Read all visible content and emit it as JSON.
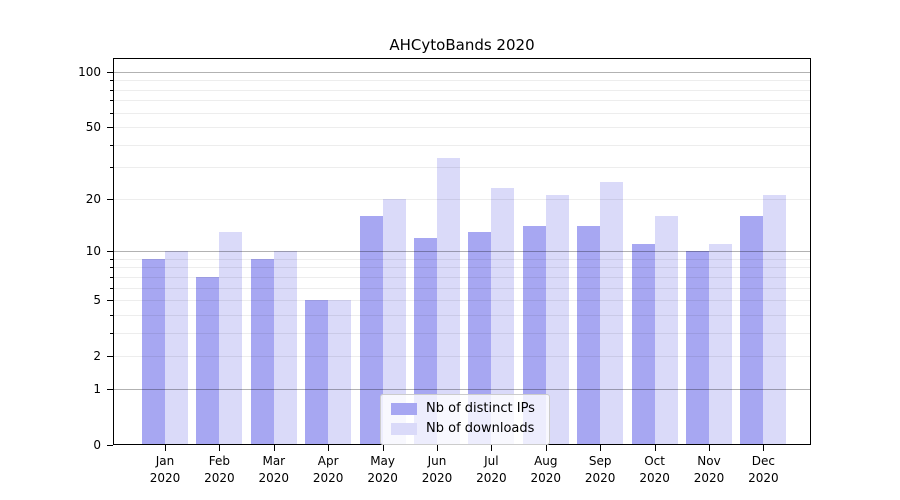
{
  "chart_data": {
    "type": "bar",
    "title": "AHCytoBands 2020",
    "categories": [
      "Jan 2020",
      "Feb 2020",
      "Mar 2020",
      "Apr 2020",
      "May 2020",
      "Jun 2020",
      "Jul 2020",
      "Aug 2020",
      "Sep 2020",
      "Oct 2020",
      "Nov 2020",
      "Dec 2020"
    ],
    "series": [
      {
        "name": "Nb of distinct IPs",
        "color": "#a7a7f2",
        "values": [
          9,
          7,
          9,
          5,
          16,
          12,
          13,
          14,
          14,
          11,
          10,
          16
        ]
      },
      {
        "name": "Nb of downloads",
        "color": "#dadaf9",
        "values": [
          10,
          13,
          10,
          5,
          20,
          34,
          23,
          21,
          25,
          16,
          11,
          21
        ]
      }
    ],
    "yscale": "log1p",
    "ylim": [
      0,
      119
    ],
    "yticks": [
      0,
      1,
      2,
      5,
      10,
      20,
      50,
      100
    ],
    "gridlines_major": [
      1,
      10,
      100
    ],
    "gridlines_minor": [
      2,
      3,
      4,
      5,
      6,
      7,
      8,
      9,
      20,
      30,
      40,
      50,
      60,
      70,
      80,
      90
    ],
    "grid": true,
    "legend_position": "lower center"
  },
  "colors": {
    "background": "#ffffff",
    "spine": "#000000",
    "bar_distinct_ips": "#a7a7f2",
    "bar_downloads": "#dadaf9"
  }
}
